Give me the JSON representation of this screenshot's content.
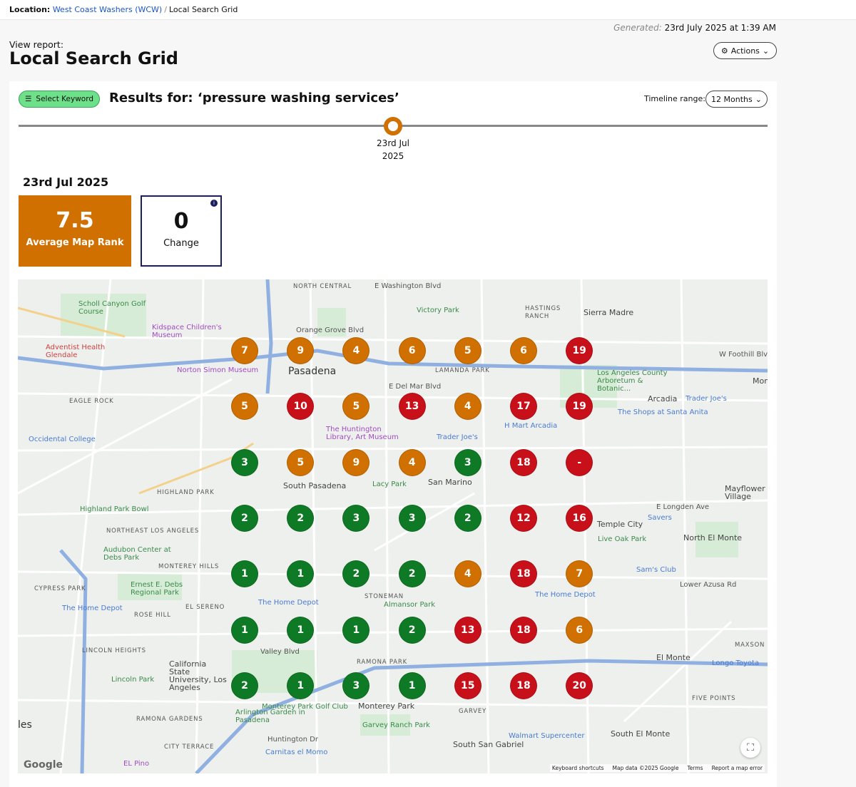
{
  "breadcrumb": {
    "label": "Location:",
    "location": "West Coast Washers (WCW)",
    "current": "Local Search Grid"
  },
  "generated": {
    "label": "Generated:",
    "value": "23rd July 2025 at 1:39 AM"
  },
  "header": {
    "view_report": "View report:",
    "title": "Local Search Grid",
    "actions": "Actions"
  },
  "toolbar": {
    "select_keyword": "Select Keyword",
    "results_for": "Results for: ‘pressure washing services’",
    "timeline_label": "Timeline range:",
    "timeline_value": "12 Months"
  },
  "timeline": {
    "point_line1": "23rd Jul",
    "point_line2": "2025"
  },
  "report": {
    "date": "23rd Jul 2025",
    "average_value": "7.5",
    "average_label": "Average Map Rank",
    "change_value": "0",
    "change_label": "Change"
  },
  "colors": {
    "good": "#0f7a25",
    "mid": "#d07000",
    "bad": "#c8101a"
  },
  "grid": [
    [
      "7",
      "9",
      "4",
      "6",
      "5",
      "6",
      "19"
    ],
    [
      "5",
      "10",
      "5",
      "13",
      "4",
      "17",
      "19"
    ],
    [
      "3",
      "5",
      "9",
      "4",
      "3",
      "18",
      "-"
    ],
    [
      "2",
      "2",
      "3",
      "3",
      "2",
      "12",
      "16"
    ],
    [
      "1",
      "1",
      "2",
      "2",
      "4",
      "18",
      "7"
    ],
    [
      "1",
      "1",
      "1",
      "2",
      "13",
      "18",
      "6"
    ],
    [
      "2",
      "1",
      "3",
      "1",
      "15",
      "18",
      "20"
    ]
  ],
  "map": {
    "labels": [
      "Pasadena",
      "Sierra Madre",
      "Arcadia",
      "South Pasadena",
      "San Marino",
      "Monterey Park",
      "El Monte",
      "Temple City",
      "North El Monte",
      "South El Monte",
      "South San Gabriel",
      "Mayflower Village",
      "Highland Park Bowl",
      "Occidental College",
      "Lincoln Park",
      "Ernest E. Debs Regional Park",
      "The Home Depot",
      "The Home Depot",
      "The Home Depot",
      "The Huntington Library, Art Museum",
      "Trader Joe's",
      "Trader Joe's",
      "Victory Park",
      "Norton Simon Museum",
      "Scholl Canyon Golf Course",
      "Adventist Health Glendale",
      "Monterey Park Golf Club",
      "Carnitas el Momo",
      "Walmart Supercenter",
      "Longo Toyota",
      "Sam's Club",
      "Savers",
      "Live Oak Park",
      "Los Angeles County Arboretum & Botanic...",
      "The Shops at Santa Anita",
      "Garvey Ranch Park",
      "Almansor Park",
      "Lacy Park",
      "California State University, Los Angeles",
      "Audubon Center at Debs Park",
      "Arlington Garden in Pasadena",
      "Kidspace Children's Museum",
      "NORTH CENTRAL",
      "HASTINGS RANCH",
      "LAMANDA PARK",
      "EAGLE ROCK",
      "HIGHLAND PARK",
      "NORTHEAST LOS ANGELES",
      "MONTEREY HILLS",
      "CYPRESS PARK",
      "EL SERENO",
      "ROSE HILL",
      "LINCOLN HEIGHTS",
      "STONEMAN",
      "RAMONA PARK",
      "GARVEY",
      "MAXSON",
      "FIVE POINTS",
      "CITY TERRACE",
      "RAMONA GARDENS",
      "E Washington Blvd",
      "Orange Grove Blvd",
      "E Del Mar Blvd",
      "W Foothill Blvd",
      "Huntington Dr",
      "E Longden Ave",
      "Lower Azusa Rd",
      "Valley Blvd",
      "H Mart Arcadia",
      "EL Pino",
      "Mon",
      "les"
    ],
    "footer": {
      "shortcuts": "Keyboard shortcuts",
      "data": "Map data ©2025 Google",
      "terms": "Terms",
      "report": "Report a map error"
    },
    "logo": "Google"
  }
}
